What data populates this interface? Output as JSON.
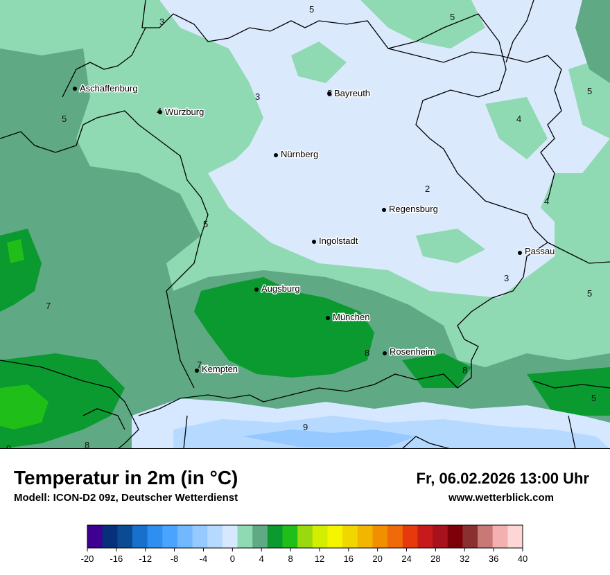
{
  "header": {
    "title": "Temperatur in 2m (in °C)",
    "model": "Modell: ICON-D2 09z, Deutscher Wetterdienst",
    "datetime": "Fr, 06.02.2026 13:00 Uhr",
    "website": "www.wetterblick.com"
  },
  "cities": [
    {
      "name": "Aschaffenburg"
    },
    {
      "name": "Würzburg"
    },
    {
      "name": "Bayreuth"
    },
    {
      "name": "Nürnberg"
    },
    {
      "name": "Regensburg"
    },
    {
      "name": "Ingolstadt"
    },
    {
      "name": "Passau"
    },
    {
      "name": "Augsburg"
    },
    {
      "name": "München"
    },
    {
      "name": "Rosenheim"
    },
    {
      "name": "Kempten"
    }
  ],
  "isoline_labels": [
    "3",
    "5",
    "5",
    "3",
    "5",
    "4",
    "5",
    "5",
    "2",
    "4",
    "5",
    "3",
    "5",
    "7",
    "7",
    "8",
    "8",
    "8",
    "9",
    "9",
    "8",
    "3",
    "4",
    "3"
  ],
  "legend": {
    "ticks": [
      "-20",
      "-16",
      "-12",
      "-8",
      "-4",
      "0",
      "4",
      "8",
      "12",
      "16",
      "20",
      "24",
      "28",
      "32",
      "36",
      "40"
    ],
    "colors": [
      "#3d0090",
      "#072f7a",
      "#0a4b94",
      "#1670cc",
      "#2f8ff0",
      "#4aa3ff",
      "#72b8ff",
      "#95c9ff",
      "#b6d9ff",
      "#d6e8ff",
      "#8fd9b3",
      "#5faa84",
      "#0a9a2f",
      "#20be18",
      "#9ad90d",
      "#d3ee00",
      "#f5f500",
      "#f2d600",
      "#f2b600",
      "#f28f00",
      "#ef6a08",
      "#e63a0c",
      "#c81a1a",
      "#a8121d",
      "#7e0008",
      "#8a3030",
      "#c97878",
      "#f2b0b0",
      "#ffd6d6"
    ]
  },
  "colors": {
    "light_blue": "#dbe9fd",
    "mint": "#8fd9b3",
    "sage": "#5faa84",
    "green": "#0a9a2f",
    "bright_green": "#20be18",
    "blue_alps": "#9cc9ff"
  }
}
